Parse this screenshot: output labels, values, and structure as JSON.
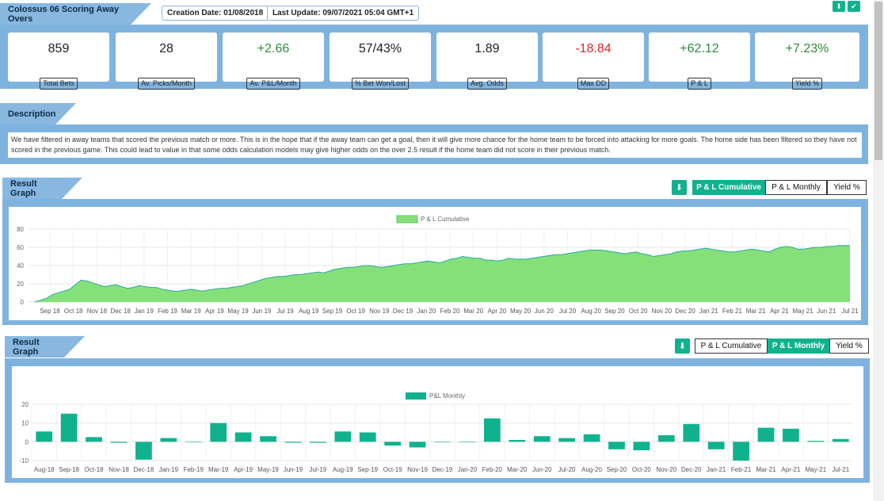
{
  "header": {
    "title": "Colossus 06 Scoring Away Overs",
    "creation_date": "Creation Date: 01/08/2018",
    "last_update": "Last Update: 09/07/2021 05:04 GMT+1"
  },
  "stats": [
    {
      "value": "859",
      "label": "Total Bets",
      "tone": "neu"
    },
    {
      "value": "28",
      "label": "Av. Picks/Month",
      "tone": "neu"
    },
    {
      "value": "+2.66",
      "label": "Av. P&L/Month",
      "tone": "pos"
    },
    {
      "value": "57/43%",
      "label": "% Bet Won/Lost",
      "tone": "neu"
    },
    {
      "value": "1.89",
      "label": "Avg. Odds",
      "tone": "neu"
    },
    {
      "value": "-18.84",
      "label": "Max DD",
      "tone": "neg"
    },
    {
      "value": "+62.12",
      "label": "P & L",
      "tone": "pos"
    },
    {
      "value": "+7.23%",
      "label": "Yield %",
      "tone": "pos"
    }
  ],
  "description": {
    "title": "Description",
    "text": "We have filtered in away teams that scored the previous match or more. This is in the hope that if the away team can get a goal, then it will give more chance for the home team to be forced into attacking for more goals. The home side has been filtered so they have not scored in the previous game. This could lead to value in that some odds calculation models may give higher odds on the over 2.5 result if the home team did not score in their previous match."
  },
  "graph1": {
    "title": "Result Graph",
    "buttons": [
      "P & L Cumulative",
      "P & L Monthly",
      "Yield %"
    ],
    "active": 0
  },
  "graph2": {
    "title": "Result Graph",
    "buttons": [
      "P & L Cumulative",
      "P & L Monthly",
      "Yield %"
    ],
    "active": 1
  },
  "colors": {
    "accent": "#10b28e",
    "panel": "#7fb3df",
    "area_fill": "#86e07a",
    "area_line": "#2aa9a0",
    "bar": "#10b28e"
  },
  "chart_data": [
    {
      "type": "area",
      "legend": "P & L Cumulative",
      "ylim": [
        0,
        80
      ],
      "yticks": [
        0,
        20,
        40,
        60,
        80
      ],
      "grid": true,
      "legend_position": "top-center",
      "x_labels": [
        "Sep 18",
        "Oct 18",
        "Nov 18",
        "Dec 18",
        "Jan 19",
        "Feb 19",
        "Mar 19",
        "Apr 19",
        "May 19",
        "Jun 19",
        "Jul 19",
        "Aug 19",
        "Sep 19",
        "Oct 19",
        "Nov 19",
        "Dec 19",
        "Jan 20",
        "Feb 20",
        "Mar 20",
        "Apr 20",
        "May 20",
        "Jun 20",
        "Jul 20",
        "Aug 20",
        "Sep 20",
        "Oct 20",
        "Nov 20",
        "Dec 20",
        "Jan 21",
        "Feb 21",
        "Mar 21",
        "Apr 21",
        "May 21",
        "Jun 21",
        "Jul 21"
      ],
      "values": [
        0,
        2,
        4,
        8,
        10,
        12,
        14,
        19,
        24,
        23,
        21,
        19,
        17,
        18,
        19,
        17,
        15,
        16,
        18,
        17,
        16,
        16,
        14,
        13,
        12,
        12,
        13,
        14,
        13,
        12,
        13,
        14,
        15,
        15,
        16,
        17,
        18,
        20,
        22,
        24,
        26,
        27,
        28,
        28,
        29,
        30,
        30,
        31,
        32,
        33,
        32,
        34,
        36,
        37,
        38,
        38,
        39,
        40,
        40,
        39,
        38,
        39,
        40,
        41,
        42,
        42,
        43,
        44,
        45,
        44,
        43,
        45,
        47,
        48,
        50,
        49,
        48,
        48,
        46,
        46,
        45,
        46,
        48,
        47,
        47,
        47,
        48,
        49,
        50,
        51,
        52,
        52,
        53,
        54,
        55,
        56,
        57,
        57,
        57,
        56,
        55,
        54,
        53,
        54,
        55,
        53,
        52,
        50,
        51,
        52,
        53,
        55,
        56,
        56,
        57,
        58,
        59,
        58,
        57,
        56,
        55,
        55,
        56,
        57,
        58,
        57,
        56,
        55,
        58,
        60,
        61,
        60,
        58,
        58,
        59,
        60,
        60,
        61,
        61,
        62,
        62,
        62
      ]
    },
    {
      "type": "bar",
      "legend": "P&L Monthly",
      "ylim": [
        -10,
        20
      ],
      "yticks": [
        -10,
        0,
        10,
        20
      ],
      "grid": true,
      "legend_position": "top-center",
      "categories": [
        "Aug-18",
        "Sep-18",
        "Oct-18",
        "Nov-18",
        "Dec-18",
        "Jan-19",
        "Feb-19",
        "Mar-19",
        "Apr-19",
        "May-19",
        "Jun-19",
        "Jul-19",
        "Aug-19",
        "Sep-19",
        "Oct-19",
        "Nov-19",
        "Dec-19",
        "Jan-20",
        "Feb-20",
        "Mar-20",
        "Jun-20",
        "Jul-20",
        "Aug-20",
        "Sep-20",
        "Oct-20",
        "Nov-20",
        "Dec-20",
        "Jan-21",
        "Feb-21",
        "Mar-21",
        "Apr-21",
        "May-21",
        "Jul-21"
      ],
      "values": [
        5.5,
        15,
        2.5,
        -0.5,
        -9.5,
        2,
        0,
        10,
        5,
        3,
        -0.5,
        -0.5,
        5.5,
        5,
        -2,
        -3,
        0,
        0,
        12.5,
        1,
        3,
        2,
        4,
        -4,
        -4.5,
        3.5,
        9.5,
        -4,
        -10,
        7.5,
        7,
        0.5,
        1.5
      ]
    }
  ]
}
